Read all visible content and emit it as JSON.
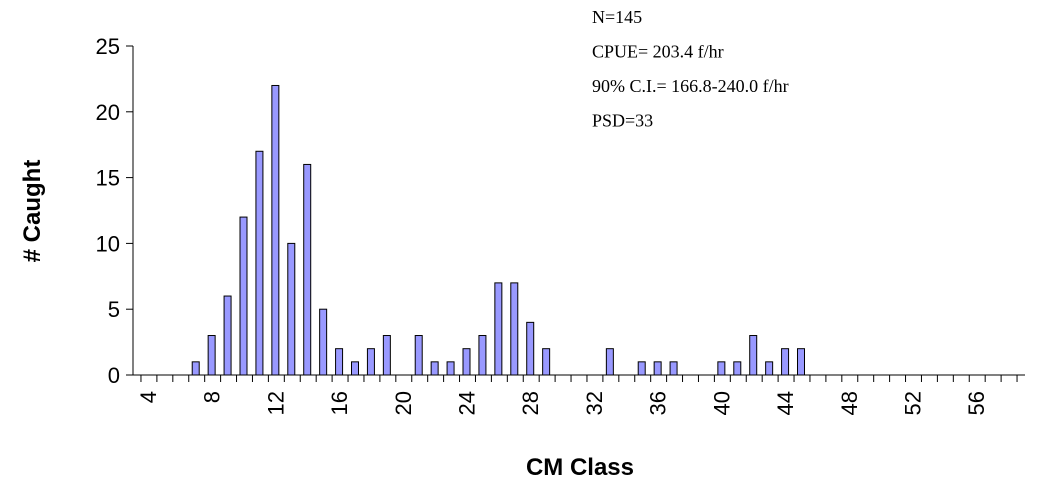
{
  "chart_data": {
    "type": "bar",
    "xlabel": "CM Class",
    "ylabel": "# Caught",
    "ylim": [
      0,
      25
    ],
    "yticks": [
      0,
      5,
      10,
      15,
      20,
      25
    ],
    "xlim": [
      3,
      59
    ],
    "xticks": [
      4,
      8,
      12,
      16,
      20,
      24,
      28,
      32,
      36,
      40,
      44,
      48,
      52,
      56
    ],
    "x": [
      4,
      5,
      6,
      7,
      8,
      9,
      10,
      11,
      12,
      13,
      14,
      15,
      16,
      17,
      18,
      19,
      20,
      21,
      22,
      23,
      24,
      25,
      26,
      27,
      28,
      29,
      30,
      31,
      32,
      33,
      34,
      35,
      36,
      37,
      38,
      39,
      40,
      41,
      42,
      43,
      44,
      45,
      46,
      47,
      48,
      49,
      50,
      51,
      52,
      53,
      54,
      55,
      56,
      57,
      58
    ],
    "values": [
      0,
      0,
      0,
      1,
      3,
      6,
      12,
      17,
      22,
      10,
      16,
      5,
      2,
      1,
      2,
      3,
      0,
      3,
      1,
      1,
      2,
      3,
      7,
      7,
      4,
      2,
      0,
      0,
      0,
      2,
      0,
      1,
      1,
      1,
      0,
      0,
      1,
      1,
      3,
      1,
      2,
      2,
      0,
      0,
      0,
      0,
      0,
      0,
      0,
      0,
      0,
      0,
      0,
      0,
      0
    ],
    "bar_color": "#9999ff",
    "annotations": [
      "N=145",
      "CPUE= 203.4 f/hr",
      "90% C.I.= 166.8-240.0 f/hr",
      "PSD=33"
    ],
    "grid": false,
    "legend": "none"
  }
}
